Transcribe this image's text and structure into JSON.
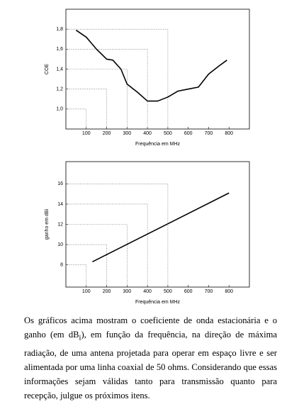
{
  "chart_data": [
    {
      "type": "line",
      "ylabel": "COE",
      "xlabel": "Frequência em MHz",
      "x": [
        50,
        100,
        150,
        200,
        230,
        270,
        300,
        350,
        400,
        450,
        500,
        550,
        600,
        650,
        700,
        750,
        790
      ],
      "values": [
        1.79,
        1.72,
        1.6,
        1.5,
        1.49,
        1.4,
        1.25,
        1.17,
        1.08,
        1.08,
        1.12,
        1.18,
        1.2,
        1.22,
        1.35,
        1.43,
        1.49
      ],
      "color": "#000000",
      "xlim": [
        0,
        900
      ],
      "ylim": [
        0.8,
        2.0
      ],
      "xticks": [
        100,
        200,
        300,
        400,
        500,
        600,
        700,
        800
      ],
      "yticks": [
        {
          "value": 1.0,
          "label": "1,0"
        },
        {
          "value": 1.2,
          "label": "1,2"
        },
        {
          "value": 1.4,
          "label": "1,4"
        },
        {
          "value": 1.6,
          "label": "1,6"
        },
        {
          "value": 1.8,
          "label": "1,8"
        }
      ],
      "guides": {
        "x": [
          100,
          200,
          300,
          400,
          500
        ],
        "y": [
          1.0,
          1.2,
          1.4,
          1.6,
          1.8
        ]
      }
    },
    {
      "type": "line",
      "ylabel": "ganho em dBi",
      "xlabel": "Frequência em MHz",
      "x": [
        130,
        800
      ],
      "values": [
        8.3,
        15.1
      ],
      "color": "#000000",
      "xlim": [
        0,
        900
      ],
      "ylim": [
        5.8,
        18.2
      ],
      "xticks": [
        100,
        200,
        300,
        400,
        500,
        600,
        700,
        800
      ],
      "yticks": [
        8,
        10,
        12,
        14,
        16
      ],
      "guides": {
        "x": [
          100,
          200,
          300,
          400,
          500
        ],
        "y": [
          8,
          10,
          12,
          14,
          16
        ]
      }
    }
  ],
  "paragraph": [
    "Os gráficos acima mostram o coeficiente de onda estacionária e o ganho (em dB",
    "i",
    "), em função da frequência, na direção de máxima radiação, de uma antena projetada para operar em espaço livre e ser alimentada por uma linha coaxial de 50 ohms. Considerando que essas informações sejam válidas tanto para transmissão quanto para recepção, julgue os próximos itens."
  ]
}
